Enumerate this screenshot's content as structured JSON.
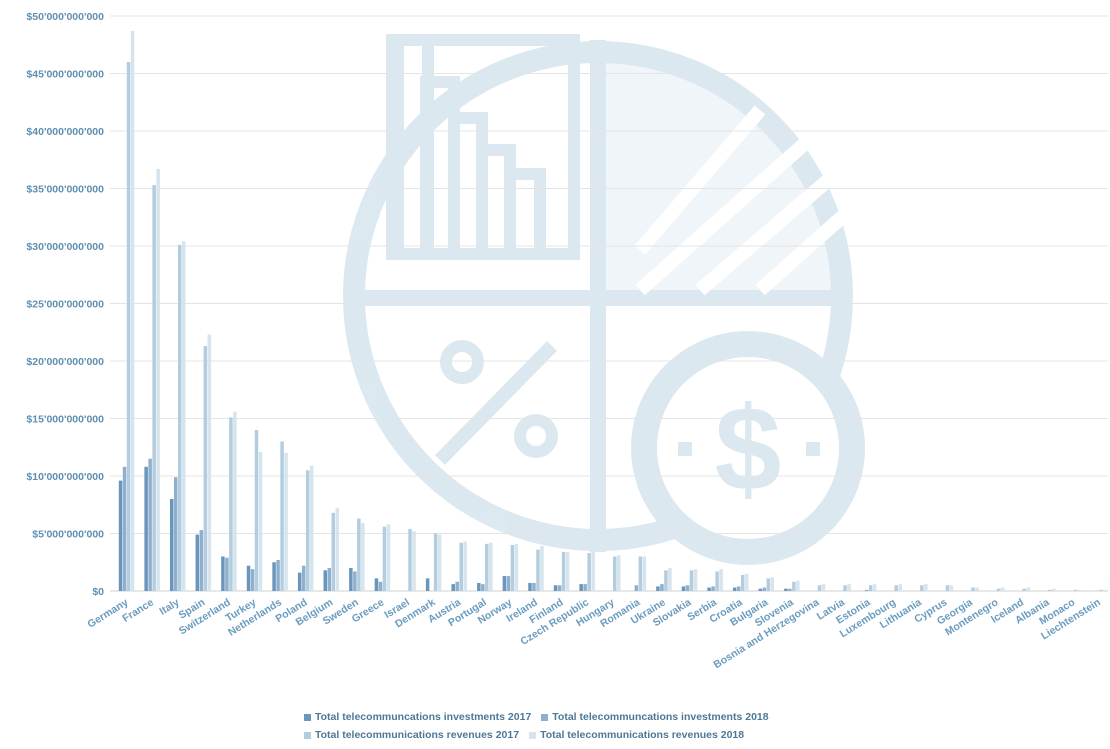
{
  "colors": {
    "investments_2017": "#6b96bb",
    "investments_2018": "#8eb0cd",
    "revenues_2017": "#b3cde0",
    "revenues_2018": "#d6e4ee",
    "watermark": "#d7e5ee",
    "axis_text": "#5f8fb1"
  },
  "watermark_icon": "finance-pie-chart-dollar-percent-icon",
  "chart_data": {
    "type": "bar",
    "title": "",
    "xlabel": "",
    "ylabel": "",
    "ylim": [
      0,
      50000000000
    ],
    "yticks": [
      0,
      5000000000,
      10000000000,
      15000000000,
      20000000000,
      25000000000,
      30000000000,
      35000000000,
      40000000000,
      45000000000,
      50000000000
    ],
    "ytick_labels": [
      "$0",
      "$5'000'000'000",
      "$10'000'000'000",
      "$15'000'000'000",
      "$20'000'000'000",
      "$25'000'000'000",
      "$30'000'000'000",
      "$35'000'000'000",
      "$40'000'000'000",
      "$45'000'000'000",
      "$50'000'000'000"
    ],
    "grid": true,
    "legend_position": "bottom",
    "categories": [
      "Germany",
      "France",
      "Italy",
      "Spain",
      "Switzerland",
      "Turkey",
      "Netherlands",
      "Poland",
      "Belgium",
      "Sweden",
      "Greece",
      "Israel",
      "Denmark",
      "Austria",
      "Portugal",
      "Norway",
      "Ireland",
      "Finland",
      "Czech Republic",
      "Hungary",
      "Romania",
      "Ukraine",
      "Slovakia",
      "Serbia",
      "Croatia",
      "Bulgaria",
      "Slovenia",
      "Bosnia and Herzegovina",
      "Latvia",
      "Estonia",
      "Luxembourg",
      "Lithuania",
      "Cyprus",
      "Georgia",
      "Montenegro",
      "Iceland",
      "Albania",
      "Monaco",
      "Liechtenstein"
    ],
    "series": [
      {
        "name": "Total telecommuncations investments 2017",
        "values": [
          9600000000,
          10800000000,
          8000000000,
          4900000000,
          3000000000,
          2200000000,
          2500000000,
          1600000000,
          1800000000,
          2000000000,
          1100000000,
          0,
          1100000000,
          600000000,
          700000000,
          1300000000,
          700000000,
          500000000,
          600000000,
          0,
          0,
          400000000,
          400000000,
          300000000,
          300000000,
          200000000,
          200000000,
          0,
          0,
          0,
          0,
          0,
          0,
          0,
          0,
          0,
          0,
          0,
          0
        ]
      },
      {
        "name": "Total telecommuncations investments 2018",
        "values": [
          10800000000,
          11500000000,
          9900000000,
          5300000000,
          2900000000,
          1900000000,
          2700000000,
          2200000000,
          2000000000,
          1700000000,
          800000000,
          0,
          0,
          800000000,
          600000000,
          1300000000,
          700000000,
          500000000,
          600000000,
          0,
          500000000,
          600000000,
          500000000,
          400000000,
          400000000,
          300000000,
          200000000,
          0,
          0,
          100000000,
          0,
          0,
          0,
          0,
          0,
          0,
          0,
          0,
          0
        ]
      },
      {
        "name": "Total telecommunications revenues 2017",
        "values": [
          46000000000,
          35300000000,
          30100000000,
          21300000000,
          15100000000,
          14000000000,
          13000000000,
          10500000000,
          6800000000,
          6300000000,
          5600000000,
          5400000000,
          5000000000,
          4200000000,
          4100000000,
          4000000000,
          3600000000,
          3400000000,
          3300000000,
          3000000000,
          3000000000,
          1800000000,
          1800000000,
          1700000000,
          1400000000,
          1100000000,
          800000000,
          500000000,
          500000000,
          500000000,
          500000000,
          500000000,
          500000000,
          300000000,
          200000000,
          200000000,
          100000000,
          100000000,
          100000000
        ]
      },
      {
        "name": "Total telecommunications revenues 2018",
        "values": [
          48700000000,
          36700000000,
          30400000000,
          22300000000,
          15600000000,
          12100000000,
          12000000000,
          10900000000,
          7200000000,
          5900000000,
          5800000000,
          5200000000,
          4900000000,
          4300000000,
          4200000000,
          4100000000,
          3900000000,
          3400000000,
          3400000000,
          3100000000,
          3000000000,
          2000000000,
          1900000000,
          1900000000,
          1500000000,
          1200000000,
          900000000,
          600000000,
          600000000,
          600000000,
          600000000,
          600000000,
          500000000,
          300000000,
          300000000,
          300000000,
          200000000,
          100000000,
          100000000
        ]
      }
    ]
  }
}
